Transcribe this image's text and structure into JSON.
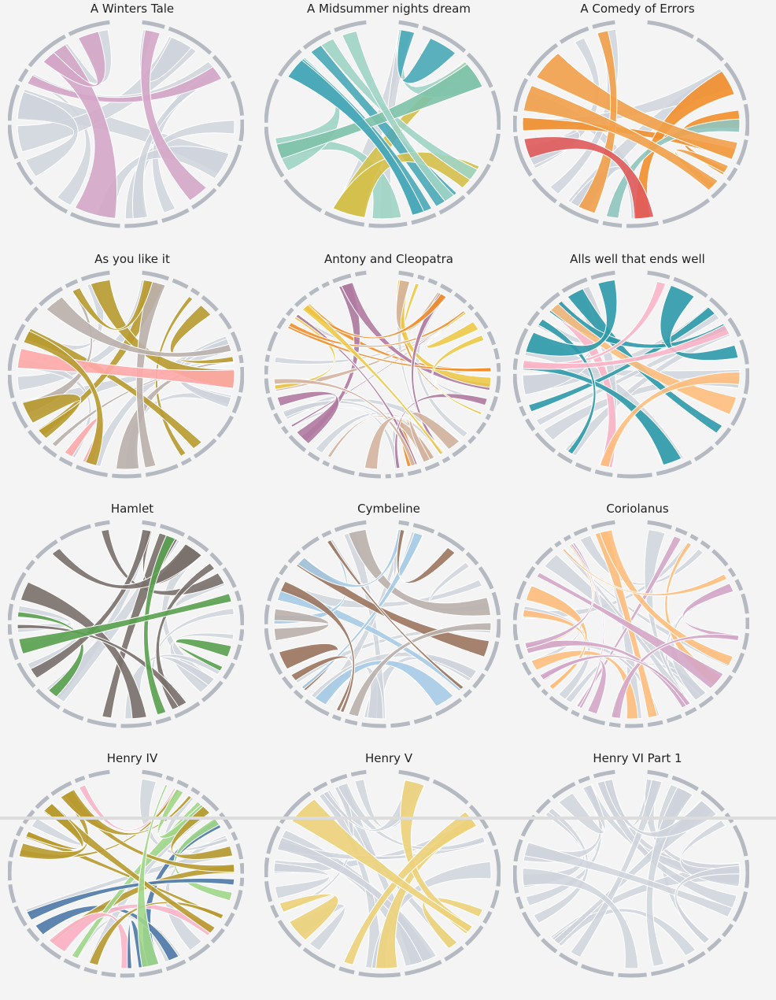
{
  "colors": {
    "background": "#f4f4f4",
    "arc": "#b4b9c2",
    "neutral_ribbon": "#cfd4dc",
    "title_text": "#222222"
  },
  "chart_data": [
    {
      "type": "chord",
      "title": "A Winters Tale",
      "segments": 17,
      "accent_colors": [
        "#d4a6c8"
      ],
      "accent_fraction": 0.5
    },
    {
      "type": "chord",
      "title": "A Midsummer nights dream",
      "segments": 16,
      "accent_colors": [
        "#9fd4c4",
        "#d4c04a",
        "#4aa8b8",
        "#7ec2a8"
      ],
      "accent_fraction": 0.65
    },
    {
      "type": "chord",
      "title": "A Comedy of Errors",
      "segments": 18,
      "accent_colors": [
        "#f2a04a",
        "#8fc4be",
        "#5aa450",
        "#e05a5a",
        "#f28e2b"
      ],
      "accent_fraction": 0.75
    },
    {
      "type": "chord",
      "title": "As you like it",
      "segments": 26,
      "accent_colors": [
        "#b89a30",
        "#ffa8a8",
        "#bab0ac"
      ],
      "accent_fraction": 0.6
    },
    {
      "type": "chord",
      "title": "Antony and Cleopatra",
      "segments": 40,
      "accent_colors": [
        "#f28e2b",
        "#b07aa1",
        "#edc948",
        "#d4b4a0"
      ],
      "accent_fraction": 0.7
    },
    {
      "type": "chord",
      "title": "Alls well that ends well",
      "segments": 24,
      "accent_colors": [
        "#ffbe7d",
        "#2e9aaa",
        "#fbb5c8"
      ],
      "accent_fraction": 0.6
    },
    {
      "type": "chord",
      "title": "Hamlet",
      "segments": 26,
      "accent_colors": [
        "#7a706c",
        "#59a14f"
      ],
      "accent_fraction": 0.6
    },
    {
      "type": "chord",
      "title": "Cymbeline",
      "segments": 28,
      "accent_colors": [
        "#9c755f",
        "#a6cbe6",
        "#bab0ac"
      ],
      "accent_fraction": 0.55
    },
    {
      "type": "chord",
      "title": "Coriolanus",
      "segments": 34,
      "accent_colors": [
        "#d4a6c8",
        "#ffbe7d"
      ],
      "accent_fraction": 0.55
    },
    {
      "type": "chord",
      "title": "Henry IV",
      "segments": 32,
      "accent_colors": [
        "#4e79a7",
        "#a0d78a",
        "#fbb5c8",
        "#b89a30"
      ],
      "accent_fraction": 0.7
    },
    {
      "type": "chord",
      "title": "Henry V",
      "segments": 22,
      "accent_colors": [
        "#edd27a"
      ],
      "accent_fraction": 0.4
    },
    {
      "type": "chord",
      "title": "Henry VI Part 1",
      "segments": 24,
      "accent_colors": [
        "#cfd4dc"
      ],
      "accent_fraction": 0.0
    }
  ]
}
